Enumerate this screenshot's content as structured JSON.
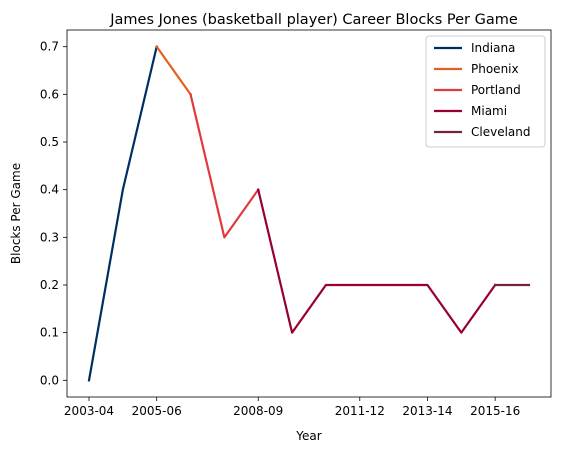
{
  "chart_data": {
    "type": "line",
    "title": "James Jones (basketball player) Career Blocks Per Game",
    "xlabel": "Year",
    "ylabel": "Blocks Per Game",
    "ylim": [
      -0.035,
      0.735
    ],
    "yticks": [
      "0.0",
      "0.1",
      "0.2",
      "0.3",
      "0.4",
      "0.5",
      "0.6",
      "0.7"
    ],
    "xticks": [
      "2003-04",
      "2005-06",
      "2008-09",
      "2011-12",
      "2013-14",
      "2015-16"
    ],
    "grid": false,
    "legend_position": "top-right",
    "series": [
      {
        "name": "Indiana",
        "color": "#002D62",
        "x": [
          0,
          1,
          2
        ],
        "values": [
          0.0,
          0.4,
          0.7
        ]
      },
      {
        "name": "Phoenix",
        "color": "#E56020",
        "x": [
          2,
          3
        ],
        "values": [
          0.7,
          0.6
        ]
      },
      {
        "name": "Portland",
        "color": "#E03A3E",
        "x": [
          3,
          4,
          5
        ],
        "values": [
          0.6,
          0.3,
          0.4
        ]
      },
      {
        "name": "Miami",
        "color": "#98002E",
        "x": [
          5,
          6,
          7,
          8,
          9,
          10,
          11,
          12
        ],
        "values": [
          0.4,
          0.1,
          0.2,
          0.2,
          0.2,
          0.2,
          0.1,
          0.2
        ]
      },
      {
        "name": "Cleveland",
        "color": "#6F263D",
        "x": [
          12,
          13
        ],
        "values": [
          0.2,
          0.2
        ]
      }
    ]
  }
}
